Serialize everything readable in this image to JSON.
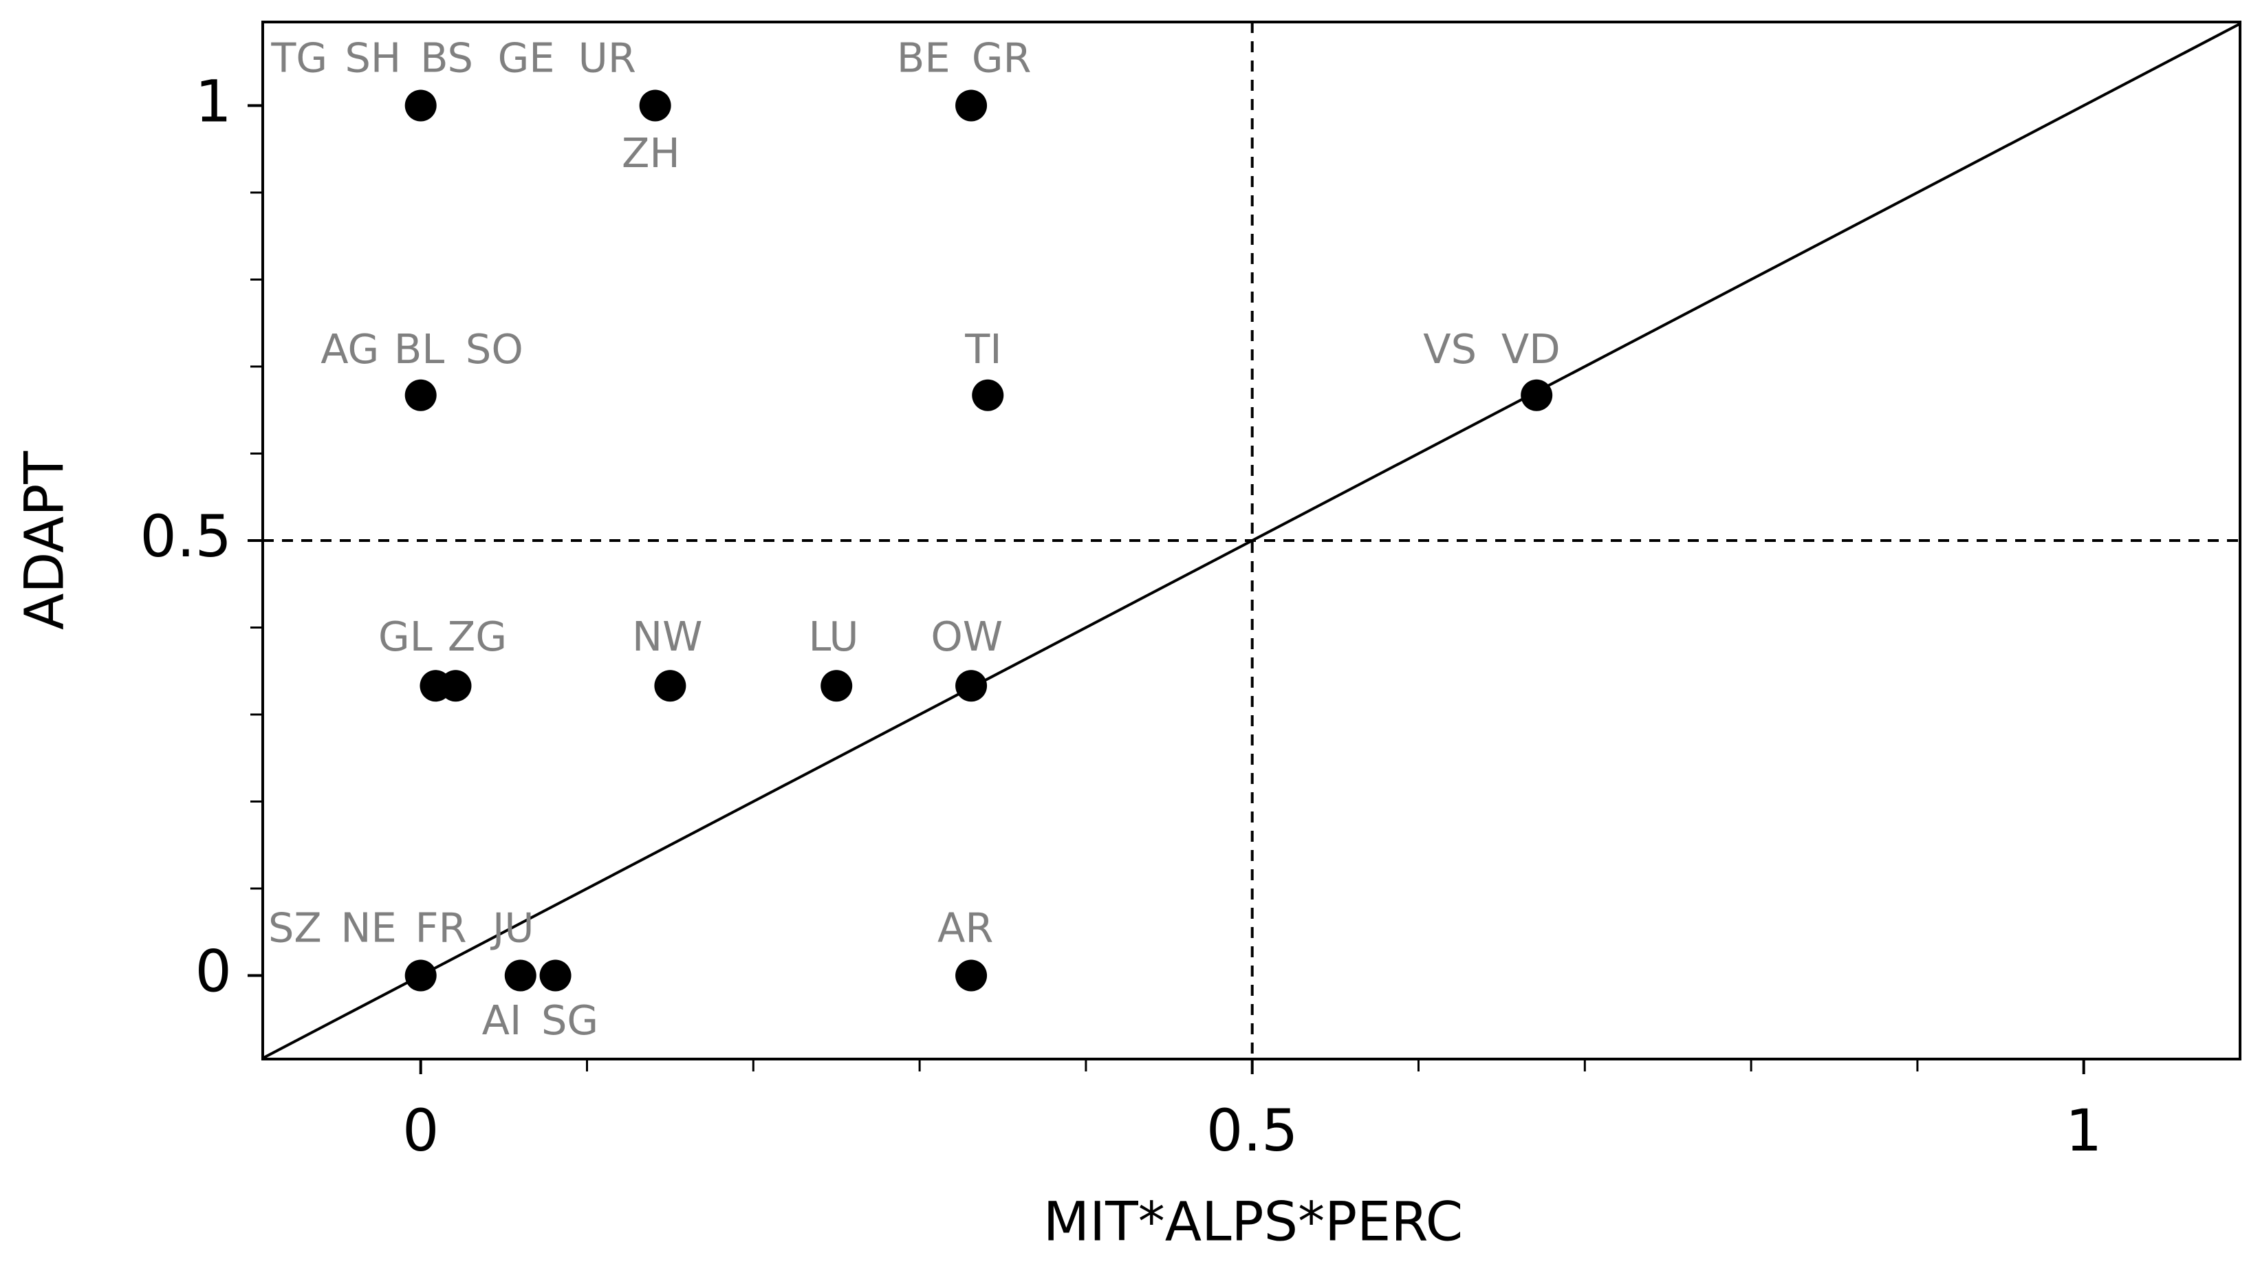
{
  "chart_data": {
    "type": "scatter",
    "xlabel": "MIT*ALPS*PERC",
    "ylabel": "ADAPT",
    "x": [
      0,
      0.141,
      0.331,
      0,
      0.341,
      0.671,
      0.009,
      0.021,
      0.15,
      0.25,
      0.331,
      0,
      0.06,
      0.081,
      0.331
    ],
    "values": [
      1,
      1,
      1,
      0.667,
      0.667,
      0.667,
      0.333,
      0.333,
      0.333,
      0.333,
      0.333,
      0,
      0,
      0,
      0
    ],
    "point_labels": [
      [
        "TG",
        "SH",
        "BS",
        "GE",
        "UR"
      ],
      [
        "ZH"
      ],
      [
        "BE",
        "GR"
      ],
      [
        "AG",
        "BL",
        "SO"
      ],
      [
        "TI"
      ],
      [
        "VS",
        "VD"
      ],
      [
        "GL"
      ],
      [
        "ZG"
      ],
      [
        "NW"
      ],
      [
        "LU"
      ],
      [
        "OW"
      ],
      [
        "SZ",
        "NE",
        "FR"
      ],
      [
        "JU",
        "AI"
      ],
      [
        "SG"
      ],
      [
        "AR"
      ]
    ],
    "color": "#000000",
    "label_color": "#808080",
    "xlim": [
      -0.095,
      1.094
    ],
    "ylim": [
      -0.096,
      1.096
    ],
    "xticks": [
      0,
      0.5,
      1
    ],
    "yticks": [
      0,
      0.5,
      1
    ],
    "xminorticks": [
      0.1,
      0.2,
      0.3,
      0.4,
      0.6,
      0.7,
      0.8,
      0.9
    ],
    "yminorticks": [
      0.1,
      0.2,
      0.3,
      0.4,
      0.6,
      0.7,
      0.8,
      0.9
    ],
    "reference_lines": {
      "x": 0.5,
      "y": 0.5,
      "identity": true
    }
  }
}
